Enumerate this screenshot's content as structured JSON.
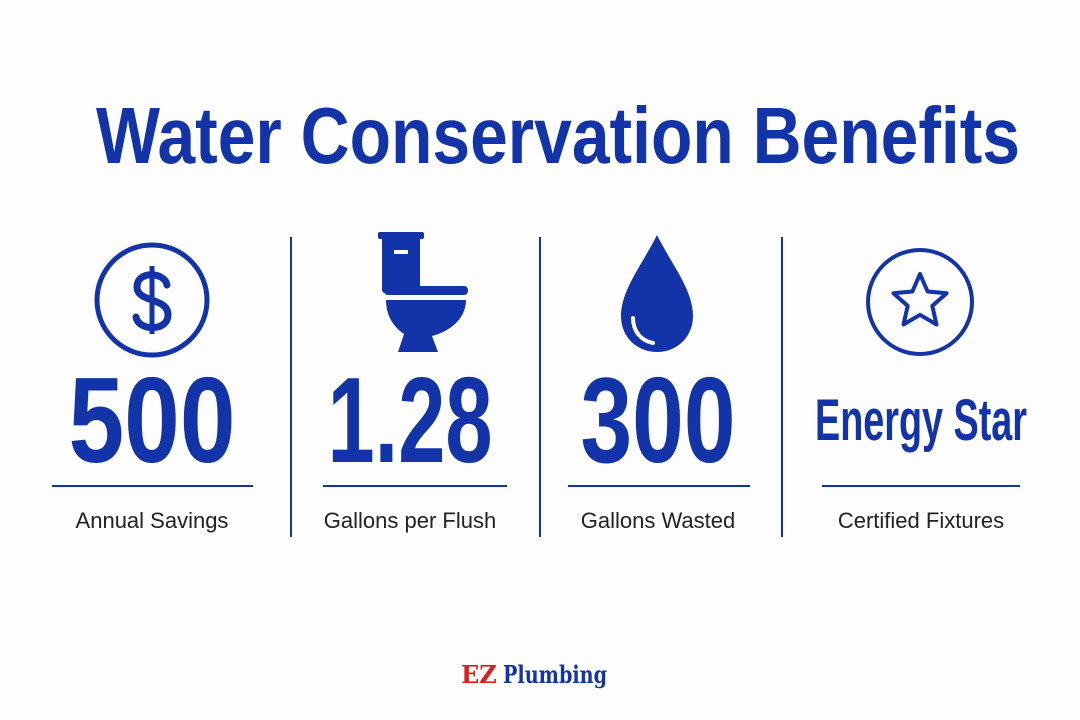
{
  "title": "Water Conservation Benefits",
  "stats": [
    {
      "value": "500",
      "label": "Annual Savings"
    },
    {
      "value": "1.28",
      "label": "Gallons per Flush"
    },
    {
      "value": "300",
      "label": "Gallons Wasted"
    },
    {
      "value": "Energy Star",
      "label": "Certified Fixtures"
    }
  ],
  "footer": {
    "brand_mark": "EZ",
    "brand_name": "Plumbing"
  }
}
